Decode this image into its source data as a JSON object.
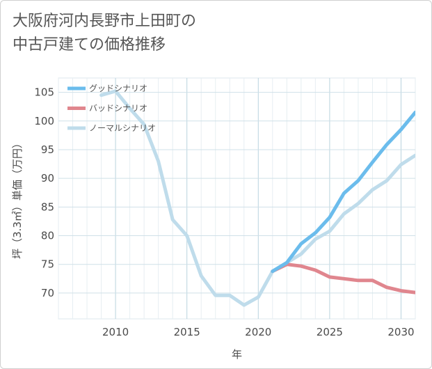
{
  "title_lines": [
    "大阪府河内長野市上田町の",
    "中古戸建ての価格推移"
  ],
  "chart_data": {
    "type": "line",
    "title": "大阪府河内長野市上田町の中古戸建ての価格推移",
    "xlabel": "年",
    "ylabel": "坪（3.3㎡）単価（万円）",
    "xlim": [
      2006,
      2031
    ],
    "ylim": [
      65.5,
      107.5
    ],
    "x_ticks": [
      2010,
      2015,
      2020,
      2025,
      2030
    ],
    "y_ticks": [
      70,
      75,
      80,
      85,
      90,
      95,
      100,
      105
    ],
    "grid": true,
    "legend_position": "top-left",
    "series": [
      {
        "name": "グッドシナリオ",
        "color": "#6bbcec",
        "x": [
          2021,
          2022,
          2023,
          2024,
          2025,
          2026,
          2027,
          2028,
          2029,
          2030,
          2031
        ],
        "values": [
          73.8,
          75.3,
          78.6,
          80.5,
          83.2,
          87.4,
          89.6,
          92.8,
          95.9,
          98.5,
          101.5
        ]
      },
      {
        "name": "バッドシナリオ",
        "color": "#e0868e",
        "x": [
          2021,
          2022,
          2023,
          2024,
          2025,
          2026,
          2027,
          2028,
          2029,
          2030,
          2031
        ],
        "values": [
          73.8,
          75.0,
          74.7,
          74.0,
          72.8,
          72.5,
          72.2,
          72.2,
          71.0,
          70.4,
          70.1
        ]
      },
      {
        "name": "ノーマルシナリオ",
        "color": "#bfdceb",
        "x": [
          2009,
          2010,
          2011,
          2012,
          2013,
          2014,
          2015,
          2016,
          2017,
          2018,
          2019,
          2020,
          2021,
          2022,
          2023,
          2024,
          2025,
          2026,
          2027,
          2028,
          2029,
          2030,
          2031
        ],
        "values": [
          104.5,
          105.2,
          102.2,
          99.4,
          93.0,
          82.8,
          80.0,
          73.0,
          69.6,
          69.6,
          67.9,
          69.3,
          73.8,
          75.3,
          76.8,
          79.4,
          80.8,
          83.8,
          85.6,
          88.0,
          89.6,
          92.4,
          94.0
        ]
      }
    ]
  }
}
